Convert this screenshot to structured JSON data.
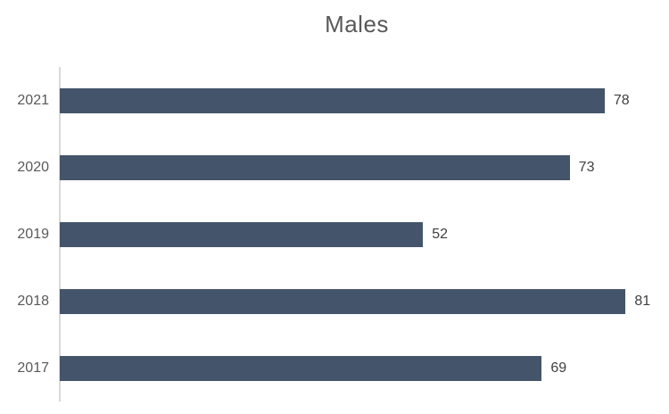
{
  "chart_data": {
    "type": "bar",
    "orientation": "horizontal",
    "title": "Males",
    "categories": [
      "2021",
      "2020",
      "2019",
      "2018",
      "2017"
    ],
    "values": [
      78,
      73,
      52,
      81,
      69
    ],
    "xlabel": "",
    "ylabel": "",
    "xlim": [
      0,
      85.3
    ],
    "grid": false,
    "legend": false,
    "data_labels": true,
    "colors": {
      "bar": "#44546a",
      "title": "#595959",
      "category_labels": "#595959",
      "value_labels": "#404040",
      "axis_line": "#d9d9d9",
      "background": "#ffffff"
    }
  }
}
